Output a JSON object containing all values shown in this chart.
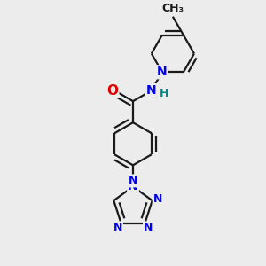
{
  "background_color": "#ececec",
  "bond_color": "#1a1a1a",
  "N_color": "#0000ee",
  "O_color": "#dd0000",
  "H_color": "#008888",
  "line_width": 1.6,
  "dbo": 0.018,
  "font_size": 10,
  "fig_size": 3.0,
  "dpi": 100,
  "xlim": [
    0.1,
    0.9
  ],
  "ylim": [
    0.02,
    0.98
  ]
}
